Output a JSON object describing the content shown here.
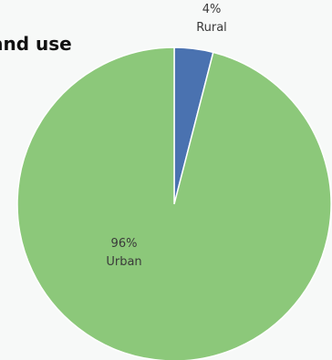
{
  "chart_data": {
    "type": "pie",
    "title": "and use",
    "slices": [
      {
        "label": "Rural",
        "value": 4,
        "value_label": "4%",
        "color": "#4a72b0"
      },
      {
        "label": "Urban",
        "value": 96,
        "value_label": "96%",
        "color": "#8cc87a"
      }
    ],
    "start_angle_deg": 0,
    "direction": "clockwise",
    "legend": "none"
  }
}
